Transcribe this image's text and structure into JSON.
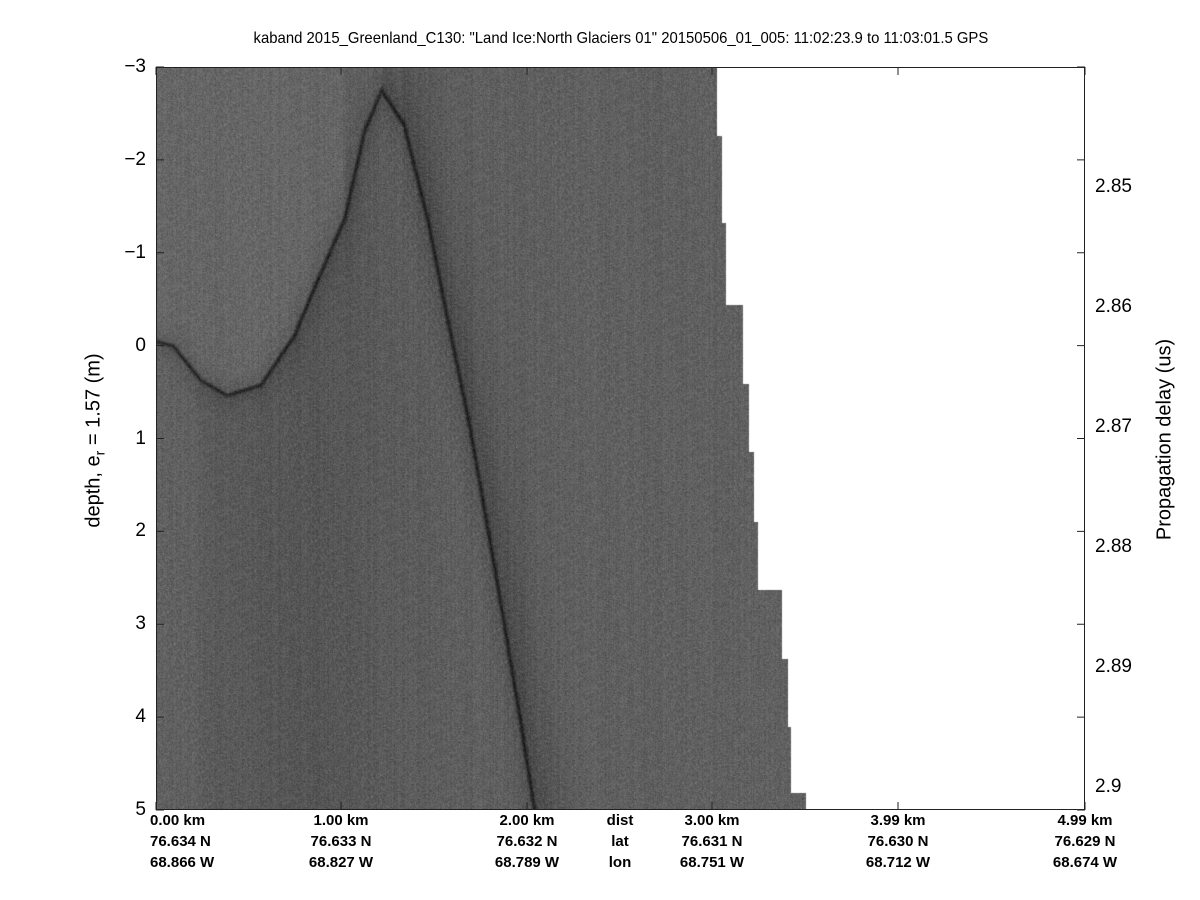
{
  "title": "kaband 2015_Greenland_C130: \"Land Ice:North Glaciers 01\"  20150506_01_005: 11:02:23.9 to 11:03:01.5 GPS",
  "chart_data": {
    "type": "heatmap",
    "title": "kaband 2015_Greenland_C130: \"Land Ice:North Glaciers 01\"  20150506_01_005: 11:02:23.9 to 11:03:01.5 GPS",
    "colormap": "grayscale",
    "ylabel": "depth, e_r = 1.57 (m)",
    "ylabel_main": "depth, e",
    "ylabel_sub": "r",
    "ylabel_rest": " = 1.57 (m)",
    "ylim": [
      -3,
      5
    ],
    "yticks": [
      "-3",
      "-2",
      "-1",
      "0",
      "1",
      "2",
      "3",
      "4",
      "5"
    ],
    "y2label": "Propagation delay (us)",
    "y2ticks": [
      "2.85",
      "2.86",
      "2.87",
      "2.88",
      "2.89",
      "2.9"
    ],
    "xlim_km": [
      0,
      4.99
    ],
    "x_rows": {
      "dist": [
        "0.00 km",
        "1.00 km",
        "2.00 km",
        "3.00 km",
        "3.99 km",
        "4.99 km"
      ],
      "lat": [
        "76.634 N",
        "76.633 N",
        "76.632 N",
        "76.631 N",
        "76.630 N",
        "76.629 N"
      ],
      "lon": [
        "68.866 W",
        "68.827 W",
        "68.789 W",
        "68.751 W",
        "68.712 W",
        "68.674 W"
      ],
      "row_labels": [
        "dist",
        "lat",
        "lon"
      ]
    },
    "layer_trace": {
      "km": [
        0.0,
        0.09,
        0.24,
        0.38,
        0.56,
        0.74,
        0.85,
        1.01,
        1.12,
        1.21,
        1.33,
        1.46,
        1.55,
        1.68,
        1.82,
        1.95,
        2.03
      ],
      "depth": [
        -0.05,
        0.0,
        0.37,
        0.53,
        0.42,
        -0.11,
        -0.64,
        -1.37,
        -2.33,
        -2.75,
        -2.38,
        -1.33,
        -0.42,
        0.84,
        2.44,
        3.98,
        5.0
      ]
    },
    "data_extent": {
      "depth_edges": [
        -3,
        -2.26,
        -1.33,
        -0.44,
        0.41,
        1.14,
        1.89,
        2.63,
        3.37,
        4.1,
        4.81,
        5
      ],
      "max_km": [
        3.01,
        3.04,
        3.06,
        3.15,
        3.18,
        3.21,
        3.23,
        3.36,
        3.39,
        3.41,
        3.49
      ]
    },
    "colors": {
      "no_data": "#ffffff",
      "layer": "#1e1e1e"
    }
  }
}
